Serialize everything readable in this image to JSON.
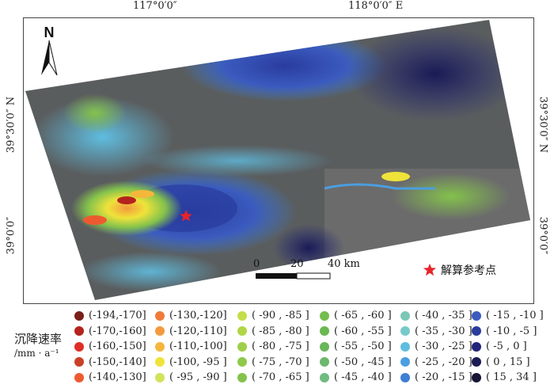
{
  "coords": {
    "top": [
      "117°0′0″",
      "118°0′0″  E"
    ],
    "left": [
      "39°30′0″  N",
      "39°0′0″"
    ],
    "right": [
      "39°30′0″  N",
      "39°0′0″"
    ]
  },
  "north_arrow": {
    "label": "N"
  },
  "scale_bar": {
    "labels": [
      "0",
      "20",
      "40 km"
    ]
  },
  "ref_point": {
    "label": "解算参考点",
    "icon": "red-star-icon",
    "color": "#e8232a"
  },
  "legend": {
    "title": "沉降速率",
    "unit": "/mm · a⁻¹",
    "columns": [
      [
        {
          "label": "(-194,-170]",
          "color": "#7a1f1a"
        },
        {
          "label": "(-170,-160]",
          "color": "#b4231e"
        },
        {
          "label": "(-160,-150]",
          "color": "#e02e26"
        },
        {
          "label": "(-150,-140]",
          "color": "#c94027"
        },
        {
          "label": "(-140,-130]",
          "color": "#ee5a2f"
        }
      ],
      [
        {
          "label": "(-130,-120]",
          "color": "#f07a3a"
        },
        {
          "label": "(-120,-110]",
          "color": "#f39a3e"
        },
        {
          "label": "(-110,-100]",
          "color": "#f4b73c"
        },
        {
          "label": "(-100, -95 ]",
          "color": "#efe33a"
        },
        {
          "label": "( -95 , -90 ]",
          "color": "#d4e25a"
        }
      ],
      [
        {
          "label": "( -90 , -85 ]",
          "color": "#c4de4a"
        },
        {
          "label": "( -85 , -80 ]",
          "color": "#b0d645"
        },
        {
          "label": "( -80 , -75 ]",
          "color": "#9fcf48"
        },
        {
          "label": "( -75 , -70 ]",
          "color": "#90c84a"
        },
        {
          "label": "( -70 , -65 ]",
          "color": "#84c24c"
        }
      ],
      [
        {
          "label": "( -65 , -60 ]",
          "color": "#74bd4c"
        },
        {
          "label": "( -60 , -55 ]",
          "color": "#6ab84f"
        },
        {
          "label": "( -55 , -50 ]",
          "color": "#68b65a"
        },
        {
          "label": "( -50 , -45 ]",
          "color": "#6cb86c"
        },
        {
          "label": "( -45 , -40 ]",
          "color": "#70bb80"
        }
      ],
      [
        {
          "label": "( -40 , -35 ]",
          "color": "#7cc7b6"
        },
        {
          "label": "( -35 , -30 ]",
          "color": "#76cac8"
        },
        {
          "label": "( -30 , -25 ]",
          "color": "#5fbde0"
        },
        {
          "label": "( -25 , -20 ]",
          "color": "#4b9ee0"
        },
        {
          "label": "( -20 , -15 ]",
          "color": "#3c7fd3"
        }
      ],
      [
        {
          "label": "( -15 , -10 ]",
          "color": "#3b5bbf"
        },
        {
          "label": "( -10 , -5 ]",
          "color": "#2a3c9e"
        },
        {
          "label": "( -5 ,  0  ]",
          "color": "#20257a"
        },
        {
          "label": "(  0  ,  15  ]",
          "color": "#1a1a55"
        },
        {
          "label": "(  15  ,  34  ]",
          "color": "#171535"
        }
      ]
    ]
  }
}
